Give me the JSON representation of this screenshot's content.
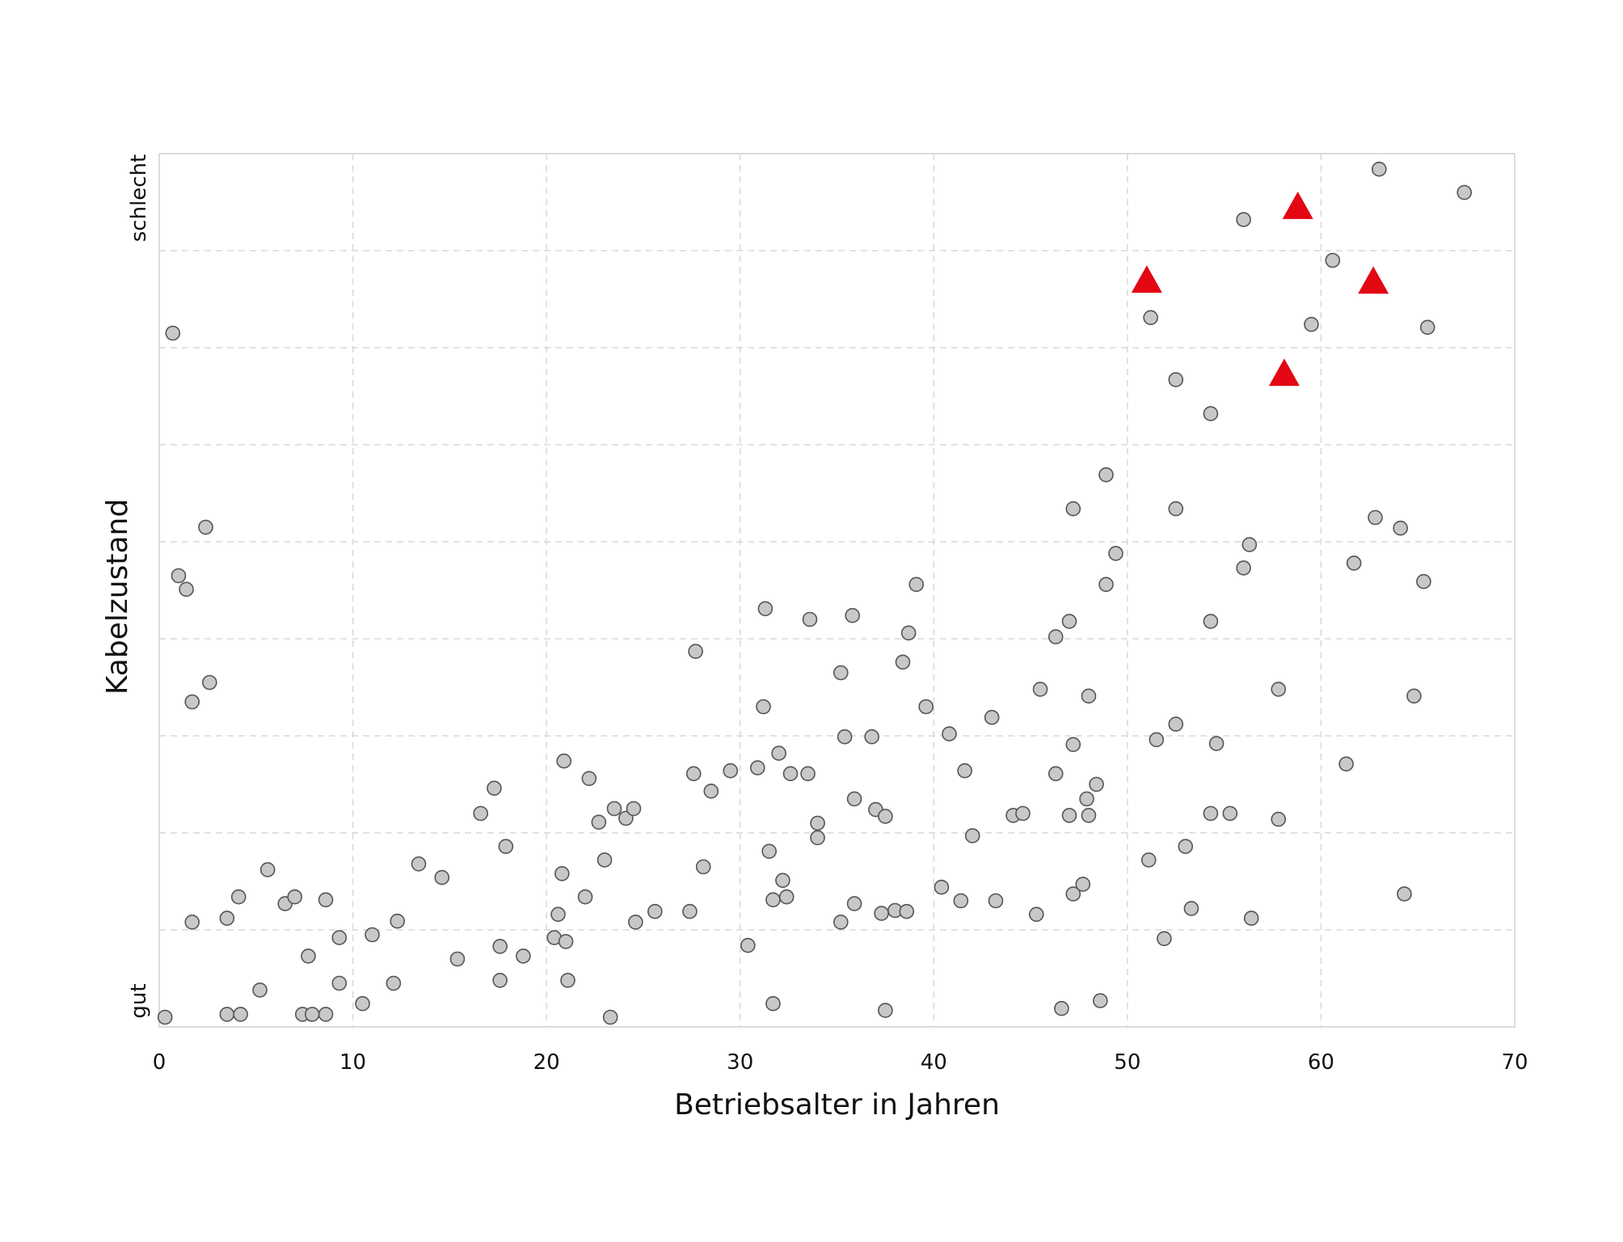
{
  "chart_data": {
    "type": "scatter",
    "title": "",
    "xlabel": "Betriebsalter in Jahren",
    "ylabel": "Kabelzustand",
    "xlim": [
      0,
      70
    ],
    "ylim": [
      0,
      9
    ],
    "xticks": [
      0,
      10,
      20,
      30,
      40,
      50,
      60,
      70
    ],
    "yticks": [
      0,
      1,
      2,
      3,
      4,
      5,
      6,
      7,
      8,
      9
    ],
    "y_category_labels": {
      "low": "gut",
      "high": "schlecht"
    },
    "grid": true,
    "legend": "none",
    "colors": {
      "circle_fill": "#c8c8c8",
      "circle_stroke": "#555555",
      "triangle_fill": "#e30613",
      "grid": "#d9d9d9",
      "frame": "#d0d0d0"
    },
    "series": [
      {
        "marker": "circle",
        "points": [
          [
            0.3,
            0.1
          ],
          [
            0.7,
            7.15
          ],
          [
            1.0,
            4.65
          ],
          [
            1.4,
            4.51
          ],
          [
            1.7,
            3.35
          ],
          [
            1.7,
            1.08
          ],
          [
            2.4,
            5.15
          ],
          [
            2.6,
            3.55
          ],
          [
            3.5,
            0.13
          ],
          [
            3.5,
            1.12
          ],
          [
            4.1,
            1.34
          ],
          [
            4.2,
            0.13
          ],
          [
            5.2,
            0.38
          ],
          [
            5.6,
            1.62
          ],
          [
            6.5,
            1.27
          ],
          [
            7.0,
            1.34
          ],
          [
            7.4,
            0.13
          ],
          [
            7.7,
            0.73
          ],
          [
            7.9,
            0.13
          ],
          [
            8.6,
            0.13
          ],
          [
            8.6,
            1.31
          ],
          [
            9.3,
            0.92
          ],
          [
            9.3,
            0.45
          ],
          [
            10.5,
            0.24
          ],
          [
            11.0,
            0.95
          ],
          [
            12.1,
            0.45
          ],
          [
            12.3,
            1.09
          ],
          [
            13.4,
            1.68
          ],
          [
            14.6,
            1.54
          ],
          [
            15.4,
            0.7
          ],
          [
            16.6,
            2.2
          ],
          [
            17.3,
            2.46
          ],
          [
            17.6,
            0.83
          ],
          [
            17.6,
            0.48
          ],
          [
            17.9,
            1.86
          ],
          [
            18.8,
            0.73
          ],
          [
            20.4,
            0.92
          ],
          [
            20.6,
            1.16
          ],
          [
            20.8,
            1.58
          ],
          [
            21.0,
            0.88
          ],
          [
            20.9,
            2.74
          ],
          [
            21.1,
            0.48
          ],
          [
            22.0,
            1.34
          ],
          [
            22.2,
            2.56
          ],
          [
            22.7,
            2.11
          ],
          [
            23.0,
            1.72
          ],
          [
            23.3,
            0.1
          ],
          [
            23.5,
            2.25
          ],
          [
            24.1,
            2.15
          ],
          [
            24.5,
            2.25
          ],
          [
            24.6,
            1.08
          ],
          [
            25.6,
            1.19
          ],
          [
            27.4,
            1.19
          ],
          [
            27.6,
            2.61
          ],
          [
            27.7,
            3.87
          ],
          [
            28.1,
            1.65
          ],
          [
            28.5,
            2.43
          ],
          [
            29.5,
            2.64
          ],
          [
            30.4,
            0.84
          ],
          [
            30.9,
            2.67
          ],
          [
            31.2,
            3.3
          ],
          [
            31.3,
            4.31
          ],
          [
            31.5,
            1.81
          ],
          [
            31.7,
            1.31
          ],
          [
            31.7,
            0.24
          ],
          [
            32.0,
            2.82
          ],
          [
            32.2,
            1.51
          ],
          [
            32.4,
            1.34
          ],
          [
            32.6,
            2.61
          ],
          [
            33.5,
            2.61
          ],
          [
            33.6,
            4.2
          ],
          [
            34.0,
            1.95
          ],
          [
            34.0,
            2.1
          ],
          [
            35.2,
            1.08
          ],
          [
            35.2,
            3.65
          ],
          [
            35.4,
            2.99
          ],
          [
            35.8,
            4.24
          ],
          [
            35.9,
            2.35
          ],
          [
            35.9,
            1.27
          ],
          [
            36.8,
            2.99
          ],
          [
            37.0,
            2.24
          ],
          [
            37.3,
            1.17
          ],
          [
            37.5,
            2.17
          ],
          [
            37.5,
            0.17
          ],
          [
            38.0,
            1.2
          ],
          [
            38.4,
            3.76
          ],
          [
            38.6,
            1.19
          ],
          [
            38.7,
            4.06
          ],
          [
            39.1,
            4.56
          ],
          [
            39.6,
            3.3
          ],
          [
            40.4,
            1.44
          ],
          [
            40.8,
            3.02
          ],
          [
            41.4,
            1.3
          ],
          [
            41.6,
            2.64
          ],
          [
            42.0,
            1.97
          ],
          [
            43.0,
            3.19
          ],
          [
            43.2,
            1.3
          ],
          [
            44.1,
            2.18
          ],
          [
            44.6,
            2.2
          ],
          [
            45.3,
            1.16
          ],
          [
            45.5,
            3.48
          ],
          [
            46.3,
            4.02
          ],
          [
            46.3,
            2.61
          ],
          [
            46.6,
            0.19
          ],
          [
            47.0,
            4.18
          ],
          [
            47.0,
            2.18
          ],
          [
            47.2,
            2.91
          ],
          [
            47.2,
            1.37
          ],
          [
            47.2,
            5.34
          ],
          [
            47.7,
            1.47
          ],
          [
            47.9,
            2.35
          ],
          [
            48.0,
            3.41
          ],
          [
            48.0,
            2.18
          ],
          [
            48.4,
            2.5
          ],
          [
            48.6,
            0.27
          ],
          [
            48.9,
            5.69
          ],
          [
            48.9,
            4.56
          ],
          [
            49.4,
            4.88
          ],
          [
            51.1,
            1.72
          ],
          [
            51.2,
            7.31
          ],
          [
            51.5,
            2.96
          ],
          [
            51.9,
            0.91
          ],
          [
            52.5,
            6.67
          ],
          [
            52.5,
            5.34
          ],
          [
            52.5,
            3.12
          ],
          [
            53.0,
            1.86
          ],
          [
            53.3,
            1.22
          ],
          [
            54.3,
            6.32
          ],
          [
            54.3,
            4.18
          ],
          [
            54.3,
            2.2
          ],
          [
            54.6,
            2.92
          ],
          [
            55.3,
            2.2
          ],
          [
            56.0,
            8.32
          ],
          [
            56.0,
            4.73
          ],
          [
            56.3,
            4.97
          ],
          [
            56.4,
            1.12
          ],
          [
            57.8,
            3.48
          ],
          [
            57.8,
            2.14
          ],
          [
            59.5,
            7.24
          ],
          [
            60.6,
            7.9
          ],
          [
            61.3,
            2.71
          ],
          [
            61.7,
            4.78
          ],
          [
            62.8,
            5.25
          ],
          [
            63.0,
            8.84
          ],
          [
            64.1,
            5.14
          ],
          [
            64.3,
            1.37
          ],
          [
            64.8,
            3.41
          ],
          [
            65.3,
            4.59
          ],
          [
            65.5,
            7.21
          ],
          [
            67.4,
            8.6
          ]
        ]
      },
      {
        "marker": "triangle",
        "points": [
          [
            51.0,
            7.69
          ],
          [
            58.1,
            6.73
          ],
          [
            58.8,
            8.45
          ],
          [
            62.7,
            7.68
          ]
        ]
      }
    ]
  }
}
